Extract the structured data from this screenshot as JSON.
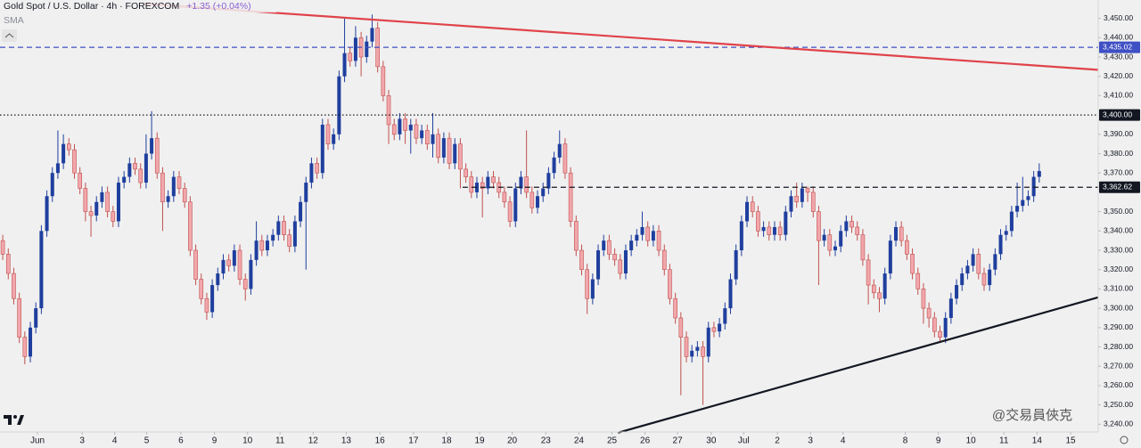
{
  "chart_data": {
    "type": "candlestick",
    "title": "Gold Spot / U.S. Dollar · 4h · FOREXCOM",
    "change": "+1.35 (+0.04%)",
    "indicator": "SMA",
    "watermark": "@交易員俠克",
    "up_color": "#1f3f9e",
    "down_color": "#f2a7ac",
    "down_border": "#c0504d",
    "ylim": [
      3236,
      3459.5
    ],
    "xlim": [
      -0.5,
      198.7
    ],
    "grid": false,
    "yticks": [
      {
        "value": 3240,
        "label": "3,240.00"
      },
      {
        "value": 3250,
        "label": "3,250.00"
      },
      {
        "value": 3260,
        "label": "3,260.00"
      },
      {
        "value": 3270,
        "label": "3,270.00"
      },
      {
        "value": 3280,
        "label": "3,280.00"
      },
      {
        "value": 3290,
        "label": "3,290.00"
      },
      {
        "value": 3300,
        "label": "3,300.00"
      },
      {
        "value": 3310,
        "label": "3,310.00"
      },
      {
        "value": 3320,
        "label": "3,320.00"
      },
      {
        "value": 3330,
        "label": "3,330.00"
      },
      {
        "value": 3340,
        "label": "3,340.00"
      },
      {
        "value": 3350,
        "label": "3,350.00"
      },
      {
        "value": 3370,
        "label": "3,370.00"
      },
      {
        "value": 3380,
        "label": "3,380.00"
      },
      {
        "value": 3390,
        "label": "3,390.00"
      },
      {
        "value": 3410,
        "label": "3,410.00"
      },
      {
        "value": 3420,
        "label": "3,420.00"
      },
      {
        "value": 3430,
        "label": "3,430.00"
      },
      {
        "value": 3440,
        "label": "3,440.00"
      },
      {
        "value": 3450,
        "label": "3,450.00"
      }
    ],
    "xticks": [
      {
        "value": 6.3,
        "label": "Jun"
      },
      {
        "value": 14.4,
        "label": "3"
      },
      {
        "value": 20.3,
        "label": "4"
      },
      {
        "value": 26.1,
        "label": "5"
      },
      {
        "value": 32.3,
        "label": "6"
      },
      {
        "value": 38.4,
        "label": "9"
      },
      {
        "value": 44.4,
        "label": "10"
      },
      {
        "value": 50.3,
        "label": "11"
      },
      {
        "value": 56.3,
        "label": "12"
      },
      {
        "value": 62.3,
        "label": "13"
      },
      {
        "value": 68.4,
        "label": "16"
      },
      {
        "value": 74.5,
        "label": "17"
      },
      {
        "value": 80.5,
        "label": "18"
      },
      {
        "value": 86.5,
        "label": "19"
      },
      {
        "value": 92.4,
        "label": "20"
      },
      {
        "value": 98.5,
        "label": "23"
      },
      {
        "value": 104.5,
        "label": "24"
      },
      {
        "value": 110.5,
        "label": "25"
      },
      {
        "value": 116.5,
        "label": "26"
      },
      {
        "value": 122.4,
        "label": "27"
      },
      {
        "value": 128.5,
        "label": "30"
      },
      {
        "value": 134.4,
        "label": "Jul"
      },
      {
        "value": 140.5,
        "label": "2"
      },
      {
        "value": 146.5,
        "label": "3"
      },
      {
        "value": 152.4,
        "label": "4"
      },
      {
        "value": 163.7,
        "label": "8"
      },
      {
        "value": 169.7,
        "label": "9"
      },
      {
        "value": 175.6,
        "label": "10"
      },
      {
        "value": 181.6,
        "label": "11"
      },
      {
        "value": 187.6,
        "label": "14"
      },
      {
        "value": 193.7,
        "label": "15"
      }
    ],
    "levels": [
      {
        "value": 3435.02,
        "label": "3,435.02",
        "color": "#3f4fc4",
        "style": "dashed",
        "from": -0.5
      },
      {
        "value": 3400,
        "label": "3,400.00",
        "color": "#131722",
        "style": "dotted",
        "from": -0.5
      },
      {
        "value": 3362.62,
        "label": "3,362.62",
        "color": "#131722",
        "style": "dashed",
        "from": 83.4
      }
    ],
    "trendlines": [
      {
        "start": [
          25.3,
          3457.6
        ],
        "end": [
          199.5,
          3423.2
        ],
        "color": "#e0434a"
      },
      {
        "start": [
          111.6,
          3235.6
        ],
        "end": [
          199.5,
          3306.3
        ],
        "color": "#131722"
      }
    ],
    "open": [
      3335,
      3328,
      3318,
      3305,
      3285,
      3275,
      3290,
      3300,
      3340,
      3358,
      3370,
      3375,
      3385,
      3382,
      3370,
      3362,
      3350,
      3348,
      3355,
      3360,
      3350,
      3345,
      3365,
      3368,
      3375,
      3372,
      3365,
      3380,
      3388,
      3370,
      3355,
      3358,
      3368,
      3362,
      3355,
      3330,
      3315,
      3305,
      3298,
      3312,
      3318,
      3325,
      3322,
      3330,
      3315,
      3310,
      3325,
      3335,
      3330,
      3335,
      3338,
      3345,
      3338,
      3332,
      3345,
      3355,
      3365,
      3375,
      3370,
      3395,
      3385,
      3390,
      3420,
      3432,
      3428,
      3440,
      3430,
      3438,
      3445,
      3425,
      3410,
      3395,
      3390,
      3398,
      3392,
      3395,
      3388,
      3392,
      3385,
      3390,
      3378,
      3388,
      3375,
      3385,
      3372,
      3368,
      3360,
      3365,
      3362,
      3368,
      3365,
      3360,
      3355,
      3345,
      3362,
      3368,
      3360,
      3352,
      3358,
      3362,
      3370,
      3378,
      3385,
      3370,
      3345,
      3330,
      3320,
      3305,
      3315,
      3330,
      3335,
      3328,
      3325,
      3318,
      3330,
      3335,
      3338,
      3342,
      3335,
      3340,
      3330,
      3320,
      3305,
      3295,
      3285,
      3275,
      3278,
      3280,
      3275,
      3290,
      3288,
      3292,
      3300,
      3315,
      3330,
      3345,
      3355,
      3350,
      3340,
      3342,
      3338,
      3342,
      3338,
      3350,
      3358,
      3355,
      3362,
      3360,
      3350,
      3335,
      3338,
      3330,
      3332,
      3340,
      3345,
      3342,
      3338,
      3325,
      3312,
      3308,
      3305,
      3318,
      3335,
      3342,
      3335,
      3328,
      3318,
      3310,
      3300,
      3295,
      3288,
      3285,
      3295,
      3305,
      3312,
      3318,
      3322,
      3328,
      3318,
      3312,
      3320,
      3328,
      3338,
      3340,
      3350,
      3353,
      3356,
      3358,
      3368
    ],
    "high": [
      3338,
      3331,
      3321,
      3308,
      3288,
      3293,
      3303,
      3343,
      3361,
      3373,
      3392,
      3390,
      3388,
      3385,
      3373,
      3365,
      3353,
      3358,
      3363,
      3363,
      3353,
      3368,
      3371,
      3378,
      3378,
      3375,
      3390,
      3402,
      3391,
      3373,
      3361,
      3371,
      3371,
      3365,
      3358,
      3333,
      3318,
      3308,
      3315,
      3321,
      3328,
      3328,
      3333,
      3333,
      3318,
      3328,
      3345,
      3338,
      3338,
      3341,
      3348,
      3348,
      3341,
      3348,
      3358,
      3368,
      3378,
      3378,
      3398,
      3398,
      3393,
      3423,
      3450,
      3435,
      3446,
      3443,
      3441,
      3452,
      3448,
      3428,
      3413,
      3398,
      3401,
      3401,
      3398,
      3398,
      3395,
      3395,
      3401,
      3393,
      3391,
      3391,
      3388,
      3388,
      3375,
      3371,
      3368,
      3368,
      3371,
      3371,
      3368,
      3363,
      3358,
      3365,
      3371,
      3392,
      3363,
      3361,
      3365,
      3373,
      3381,
      3392,
      3388,
      3373,
      3348,
      3333,
      3323,
      3318,
      3333,
      3338,
      3338,
      3331,
      3328,
      3333,
      3338,
      3341,
      3350,
      3345,
      3343,
      3343,
      3333,
      3323,
      3308,
      3298,
      3288,
      3281,
      3283,
      3283,
      3293,
      3293,
      3295,
      3303,
      3318,
      3333,
      3348,
      3358,
      3358,
      3353,
      3345,
      3345,
      3345,
      3345,
      3353,
      3361,
      3365,
      3365,
      3363,
      3363,
      3353,
      3341,
      3341,
      3335,
      3343,
      3348,
      3348,
      3345,
      3341,
      3328,
      3315,
      3311,
      3321,
      3338,
      3345,
      3345,
      3338,
      3331,
      3321,
      3313,
      3303,
      3298,
      3291,
      3298,
      3308,
      3315,
      3321,
      3325,
      3331,
      3331,
      3321,
      3323,
      3331,
      3341,
      3343,
      3353,
      3365,
      3368,
      3361,
      3371,
      3375
    ],
    "low": [
      3325,
      3315,
      3302,
      3282,
      3271,
      3272,
      3287,
      3297,
      3337,
      3355,
      3367,
      3372,
      3379,
      3367,
      3359,
      3345,
      3337,
      3345,
      3352,
      3347,
      3342,
      3342,
      3362,
      3365,
      3369,
      3362,
      3362,
      3377,
      3367,
      3340,
      3352,
      3355,
      3359,
      3352,
      3327,
      3312,
      3302,
      3294,
      3295,
      3309,
      3315,
      3319,
      3319,
      3312,
      3304,
      3307,
      3322,
      3327,
      3327,
      3332,
      3335,
      3335,
      3329,
      3329,
      3342,
      3320,
      3362,
      3367,
      3367,
      3382,
      3382,
      3387,
      3417,
      3425,
      3425,
      3420,
      3427,
      3435,
      3422,
      3407,
      3385,
      3387,
      3387,
      3385,
      3380,
      3385,
      3385,
      3382,
      3378,
      3375,
      3375,
      3372,
      3372,
      3362,
      3365,
      3357,
      3357,
      3347,
      3359,
      3362,
      3357,
      3352,
      3342,
      3342,
      3359,
      3357,
      3349,
      3349,
      3355,
      3359,
      3367,
      3375,
      3367,
      3342,
      3327,
      3317,
      3297,
      3302,
      3312,
      3327,
      3325,
      3322,
      3315,
      3315,
      3327,
      3332,
      3335,
      3332,
      3332,
      3327,
      3317,
      3302,
      3292,
      3255,
      3272,
      3272,
      3275,
      3250,
      3272,
      3285,
      3285,
      3289,
      3297,
      3312,
      3327,
      3342,
      3347,
      3337,
      3337,
      3335,
      3335,
      3335,
      3335,
      3347,
      3352,
      3352,
      3355,
      3347,
      3312,
      3332,
      3327,
      3327,
      3329,
      3337,
      3339,
      3335,
      3322,
      3302,
      3305,
      3298,
      3302,
      3315,
      3332,
      3332,
      3325,
      3315,
      3307,
      3292,
      3290,
      3285,
      3282,
      3282,
      3292,
      3302,
      3309,
      3315,
      3319,
      3315,
      3309,
      3309,
      3317,
      3325,
      3335,
      3337,
      3347,
      3350,
      3353,
      3355,
      3365
    ],
    "close": [
      3328,
      3318,
      3305,
      3285,
      3275,
      3290,
      3300,
      3340,
      3358,
      3370,
      3375,
      3385,
      3382,
      3370,
      3362,
      3350,
      3348,
      3355,
      3360,
      3350,
      3345,
      3365,
      3368,
      3375,
      3372,
      3365,
      3380,
      3388,
      3370,
      3355,
      3358,
      3368,
      3362,
      3355,
      3330,
      3315,
      3305,
      3298,
      3312,
      3318,
      3325,
      3322,
      3330,
      3315,
      3310,
      3325,
      3335,
      3330,
      3335,
      3338,
      3345,
      3338,
      3332,
      3345,
      3355,
      3365,
      3375,
      3370,
      3395,
      3385,
      3390,
      3420,
      3432,
      3428,
      3440,
      3430,
      3438,
      3445,
      3425,
      3410,
      3395,
      3390,
      3398,
      3392,
      3395,
      3388,
      3392,
      3385,
      3390,
      3378,
      3388,
      3375,
      3385,
      3372,
      3368,
      3360,
      3365,
      3362,
      3368,
      3365,
      3360,
      3355,
      3345,
      3362,
      3368,
      3360,
      3352,
      3358,
      3362,
      3370,
      3378,
      3385,
      3370,
      3345,
      3330,
      3320,
      3305,
      3315,
      3330,
      3335,
      3328,
      3325,
      3318,
      3330,
      3335,
      3338,
      3342,
      3335,
      3340,
      3330,
      3320,
      3305,
      3295,
      3285,
      3275,
      3278,
      3280,
      3275,
      3290,
      3288,
      3292,
      3300,
      3315,
      3330,
      3345,
      3355,
      3350,
      3340,
      3342,
      3338,
      3342,
      3338,
      3350,
      3358,
      3355,
      3362,
      3360,
      3350,
      3335,
      3338,
      3330,
      3332,
      3340,
      3345,
      3342,
      3338,
      3325,
      3312,
      3308,
      3305,
      3318,
      3335,
      3342,
      3335,
      3328,
      3318,
      3310,
      3300,
      3295,
      3288,
      3285,
      3295,
      3305,
      3312,
      3318,
      3322,
      3328,
      3318,
      3312,
      3320,
      3328,
      3338,
      3340,
      3350,
      3353,
      3356,
      3358,
      3368,
      3371
    ]
  }
}
